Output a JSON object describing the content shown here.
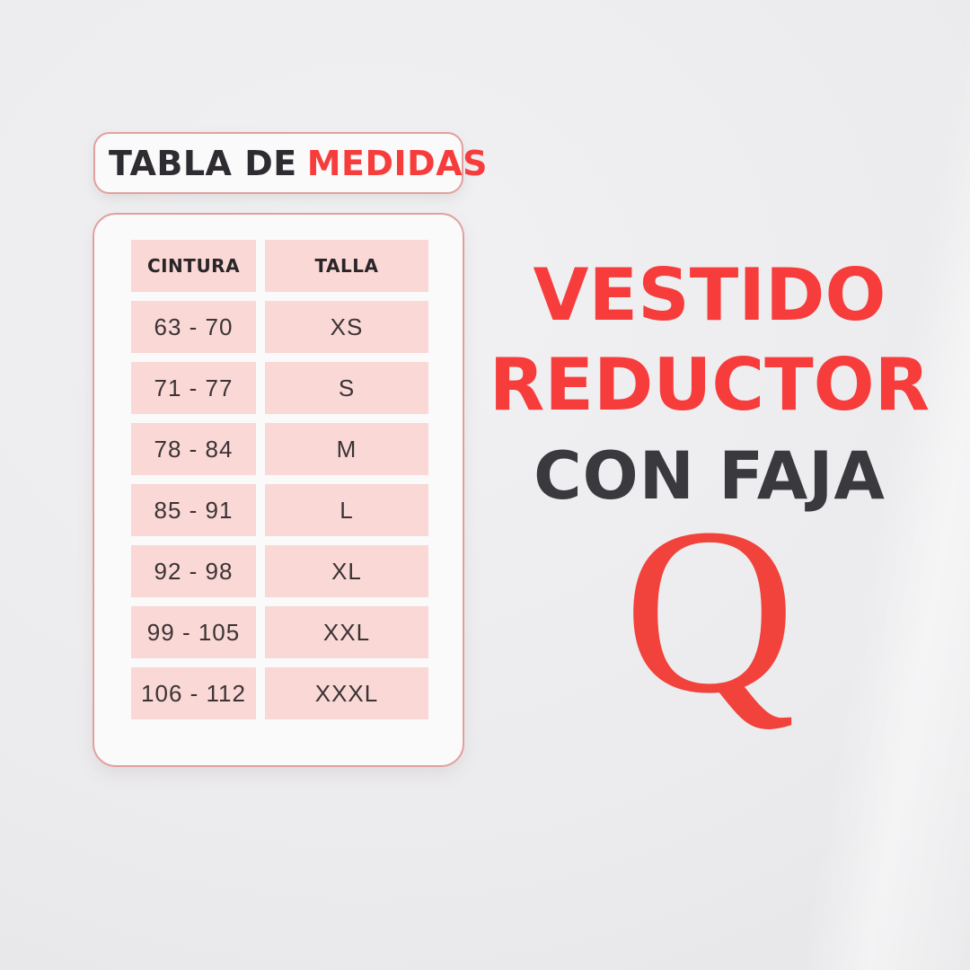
{
  "title_badge": {
    "prefix": "TABLA DE",
    "highlight": "MEDIDAS"
  },
  "chart_data": {
    "type": "table",
    "title": "TABLA DE MEDIDAS",
    "columns": [
      "CINTURA",
      "TALLA"
    ],
    "rows": [
      [
        "63 - 70",
        "XS"
      ],
      [
        "71 - 77",
        "S"
      ],
      [
        "78 - 84",
        "M"
      ],
      [
        "85 - 91",
        "L"
      ],
      [
        "92 - 98",
        "XL"
      ],
      [
        "99 - 105",
        "XXL"
      ],
      [
        "106 - 112",
        "XXXL"
      ]
    ]
  },
  "promo": {
    "title_line1": "VESTIDO",
    "title_line2": "REDUCTOR",
    "subtitle": "CON FAJA",
    "brand_letter": "Q"
  },
  "colors": {
    "accent_red": "#f73c3c",
    "brand_red": "#f2423c",
    "dark_text": "#3a393d",
    "cell_pink": "#f9d8d6",
    "card_border": "#e0a09e",
    "card_background": "#fafafb",
    "page_background": "#ebebed"
  }
}
